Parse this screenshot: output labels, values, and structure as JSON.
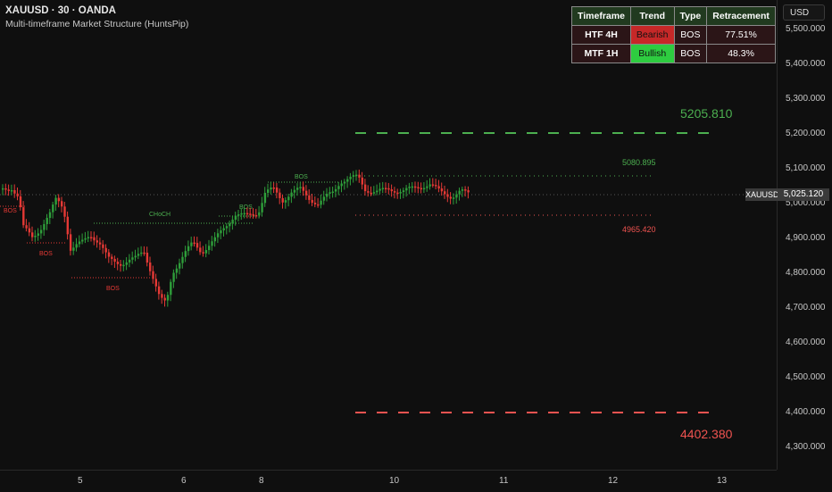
{
  "header": {
    "title": "XAUUSD · 30 · OANDA",
    "subtitle": "Multi-timeframe Market Structure (HuntsPip)"
  },
  "currency_button": "USD",
  "table": {
    "headers": [
      "Timeframe",
      "Trend",
      "Type",
      "Retracement"
    ],
    "rows": [
      {
        "timeframe": "HTF 4H",
        "trend": "Bearish",
        "type": "BOS",
        "retracement": "77.51%",
        "trend_color": "#c62828"
      },
      {
        "timeframe": "MTF 1H",
        "trend": "Bullish",
        "type": "BOS",
        "retracement": "48.3%",
        "trend_color": "#2ecc40"
      }
    ]
  },
  "price_scale": {
    "ticks": [
      "5,500.000",
      "5,400.000",
      "5,300.000",
      "5,200.000",
      "5,100.000",
      "5,000.000",
      "4,900.000",
      "4,800.000",
      "4,700.000",
      "4,600.000",
      "4,500.000",
      "4,400.000",
      "4,300.000"
    ],
    "current_price": "5,025.120",
    "symbol": "XAUUSD"
  },
  "time_scale": {
    "labels": [
      "5",
      "6",
      "8",
      "10",
      "11",
      "12",
      "13"
    ]
  },
  "levels": {
    "htf_high": "5205.810",
    "htf_low": "4402.380",
    "mtf_high": "5080.895",
    "mtf_low": "4965.420"
  },
  "structure_labels": [
    "BOS",
    "BOS",
    "BOS",
    "CHoCH",
    "BOS",
    "BOS"
  ],
  "colors": {
    "bull": "#2e9e3a",
    "bear": "#e53935",
    "green_line": "#4caf50",
    "red_line": "#ef5350"
  }
}
